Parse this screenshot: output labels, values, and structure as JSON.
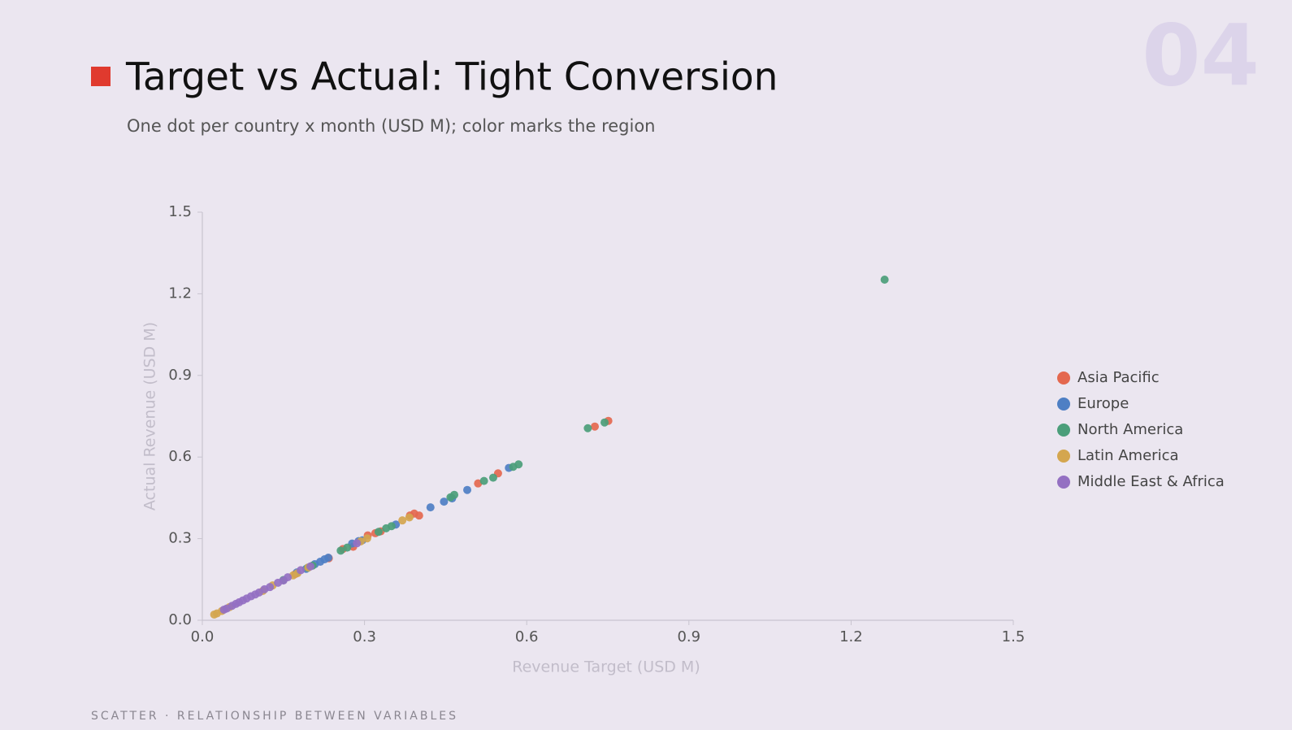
{
  "slide_number": "04",
  "footer": "SCATTER · RELATIONSHIP BETWEEN VARIABLES",
  "chart_data": {
    "type": "scatter",
    "title": "Target vs Actual: Tight Conversion",
    "subtitle": "One dot per country x month (USD M); color marks the region",
    "x_label": "Revenue Target (USD M)",
    "y_label": "Actual Revenue (USD M)",
    "xlim": [
      0,
      1.5
    ],
    "ylim": [
      0,
      1.5
    ],
    "xticks": [
      {
        "value": 0,
        "label": "0.0"
      },
      0.3,
      0.6,
      0.9,
      1.2,
      1.5
    ],
    "yticks": [
      {
        "value": 0,
        "label": "0.0"
      },
      0.3,
      0.6,
      0.9,
      1.2,
      1.5
    ],
    "grid": false,
    "legend": "right",
    "series": [
      {
        "name": "Asia Pacific",
        "color": "#e4684f",
        "x": [
          0.751,
          0.726,
          0.547,
          0.51,
          0.401,
          0.392,
          0.384,
          0.33,
          0.32,
          0.306,
          0.279,
          0.26,
          0.234,
          0.172
        ],
        "y": [
          0.733,
          0.712,
          0.54,
          0.503,
          0.385,
          0.392,
          0.385,
          0.327,
          0.32,
          0.312,
          0.27,
          0.262,
          0.228,
          0.17
        ]
      },
      {
        "name": "Europe",
        "color": "#4e7fc4",
        "x": [
          0.567,
          0.49,
          0.462,
          0.447,
          0.422,
          0.358,
          0.296,
          0.289,
          0.277,
          0.233,
          0.226,
          0.218,
          0.208,
          0.192,
          0.175
        ],
        "y": [
          0.56,
          0.479,
          0.448,
          0.436,
          0.415,
          0.352,
          0.294,
          0.291,
          0.282,
          0.23,
          0.224,
          0.215,
          0.206,
          0.189,
          0.176
        ]
      },
      {
        "name": "North America",
        "color": "#4b9e7a",
        "x": [
          1.262,
          0.713,
          0.744,
          0.585,
          0.575,
          0.538,
          0.521,
          0.466,
          0.459,
          0.35,
          0.34,
          0.326,
          0.268,
          0.256,
          0.204,
          0.195,
          0.15
        ],
        "y": [
          1.252,
          0.706,
          0.727,
          0.573,
          0.564,
          0.524,
          0.512,
          0.461,
          0.452,
          0.346,
          0.338,
          0.325,
          0.267,
          0.256,
          0.201,
          0.193,
          0.148
        ]
      },
      {
        "name": "Latin America",
        "color": "#d4a64f",
        "x": [
          0.383,
          0.37,
          0.305,
          0.293,
          0.196,
          0.176,
          0.168,
          0.13,
          0.112,
          0.05,
          0.036,
          0.027,
          0.022
        ],
        "y": [
          0.378,
          0.367,
          0.301,
          0.29,
          0.194,
          0.173,
          0.165,
          0.128,
          0.108,
          0.048,
          0.034,
          0.025,
          0.021
        ]
      },
      {
        "name": "Middle East & Africa",
        "color": "#9470c2",
        "x": [
          0.286,
          0.2,
          0.182,
          0.158,
          0.15,
          0.14,
          0.125,
          0.115,
          0.105,
          0.098,
          0.09,
          0.082,
          0.075,
          0.068,
          0.062,
          0.055,
          0.045,
          0.04
        ],
        "y": [
          0.283,
          0.198,
          0.184,
          0.158,
          0.146,
          0.138,
          0.122,
          0.114,
          0.102,
          0.095,
          0.088,
          0.08,
          0.073,
          0.066,
          0.06,
          0.053,
          0.043,
          0.039
        ]
      }
    ]
  }
}
